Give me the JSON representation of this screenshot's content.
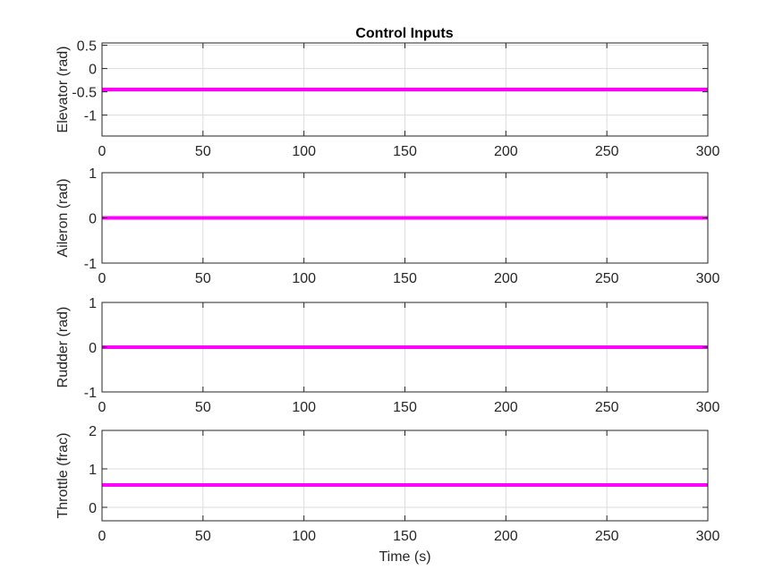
{
  "figure_title": "Control Inputs",
  "chart_data": [
    {
      "type": "line",
      "title": "Control Inputs",
      "xlabel": "",
      "ylabel": "Elevator (rad)",
      "xlim": [
        0,
        300
      ],
      "ylim": [
        -1.45,
        0.55
      ],
      "x_ticks": [
        0,
        50,
        100,
        150,
        200,
        250,
        300
      ],
      "x_tick_labels": [
        "0",
        "50",
        "100",
        "150",
        "200",
        "250",
        "300"
      ],
      "y_ticks": [
        0.5,
        0,
        -0.5,
        -1
      ],
      "y_tick_labels": [
        "0.5",
        "0",
        "-0.5",
        "-1"
      ],
      "grid": true,
      "series": [
        {
          "color": "#ff00ff",
          "x": [
            0,
            300
          ],
          "y": [
            -0.45,
            -0.45
          ]
        }
      ]
    },
    {
      "type": "line",
      "title": "",
      "xlabel": "",
      "ylabel": "Aileron (rad)",
      "xlim": [
        0,
        300
      ],
      "ylim": [
        -1,
        1
      ],
      "x_ticks": [
        0,
        50,
        100,
        150,
        200,
        250,
        300
      ],
      "x_tick_labels": [
        "0",
        "50",
        "100",
        "150",
        "200",
        "250",
        "300"
      ],
      "y_ticks": [
        1,
        0,
        -1
      ],
      "y_tick_labels": [
        "1",
        "0",
        "-1"
      ],
      "grid": true,
      "series": [
        {
          "color": "#ff00ff",
          "x": [
            0,
            300
          ],
          "y": [
            0,
            0
          ]
        }
      ]
    },
    {
      "type": "line",
      "title": "",
      "xlabel": "",
      "ylabel": "Rudder (rad)",
      "xlim": [
        0,
        300
      ],
      "ylim": [
        -1,
        1
      ],
      "x_ticks": [
        0,
        50,
        100,
        150,
        200,
        250,
        300
      ],
      "x_tick_labels": [
        "0",
        "50",
        "100",
        "150",
        "200",
        "250",
        "300"
      ],
      "y_ticks": [
        1,
        0,
        -1
      ],
      "y_tick_labels": [
        "1",
        "0",
        "-1"
      ],
      "grid": true,
      "series": [
        {
          "color": "#ff00ff",
          "x": [
            0,
            300
          ],
          "y": [
            0,
            0
          ]
        }
      ]
    },
    {
      "type": "line",
      "title": "",
      "xlabel": "Time (s)",
      "ylabel": "Throttle (frac)",
      "xlim": [
        0,
        300
      ],
      "ylim": [
        -0.35,
        2
      ],
      "x_ticks": [
        0,
        50,
        100,
        150,
        200,
        250,
        300
      ],
      "x_tick_labels": [
        "0",
        "50",
        "100",
        "150",
        "200",
        "250",
        "300"
      ],
      "y_ticks": [
        2,
        1,
        0
      ],
      "y_tick_labels": [
        "2",
        "1",
        "0"
      ],
      "grid": true,
      "series": [
        {
          "color": "#ff00ff",
          "x": [
            0,
            300
          ],
          "y": [
            0.58,
            0.58
          ]
        }
      ]
    }
  ]
}
